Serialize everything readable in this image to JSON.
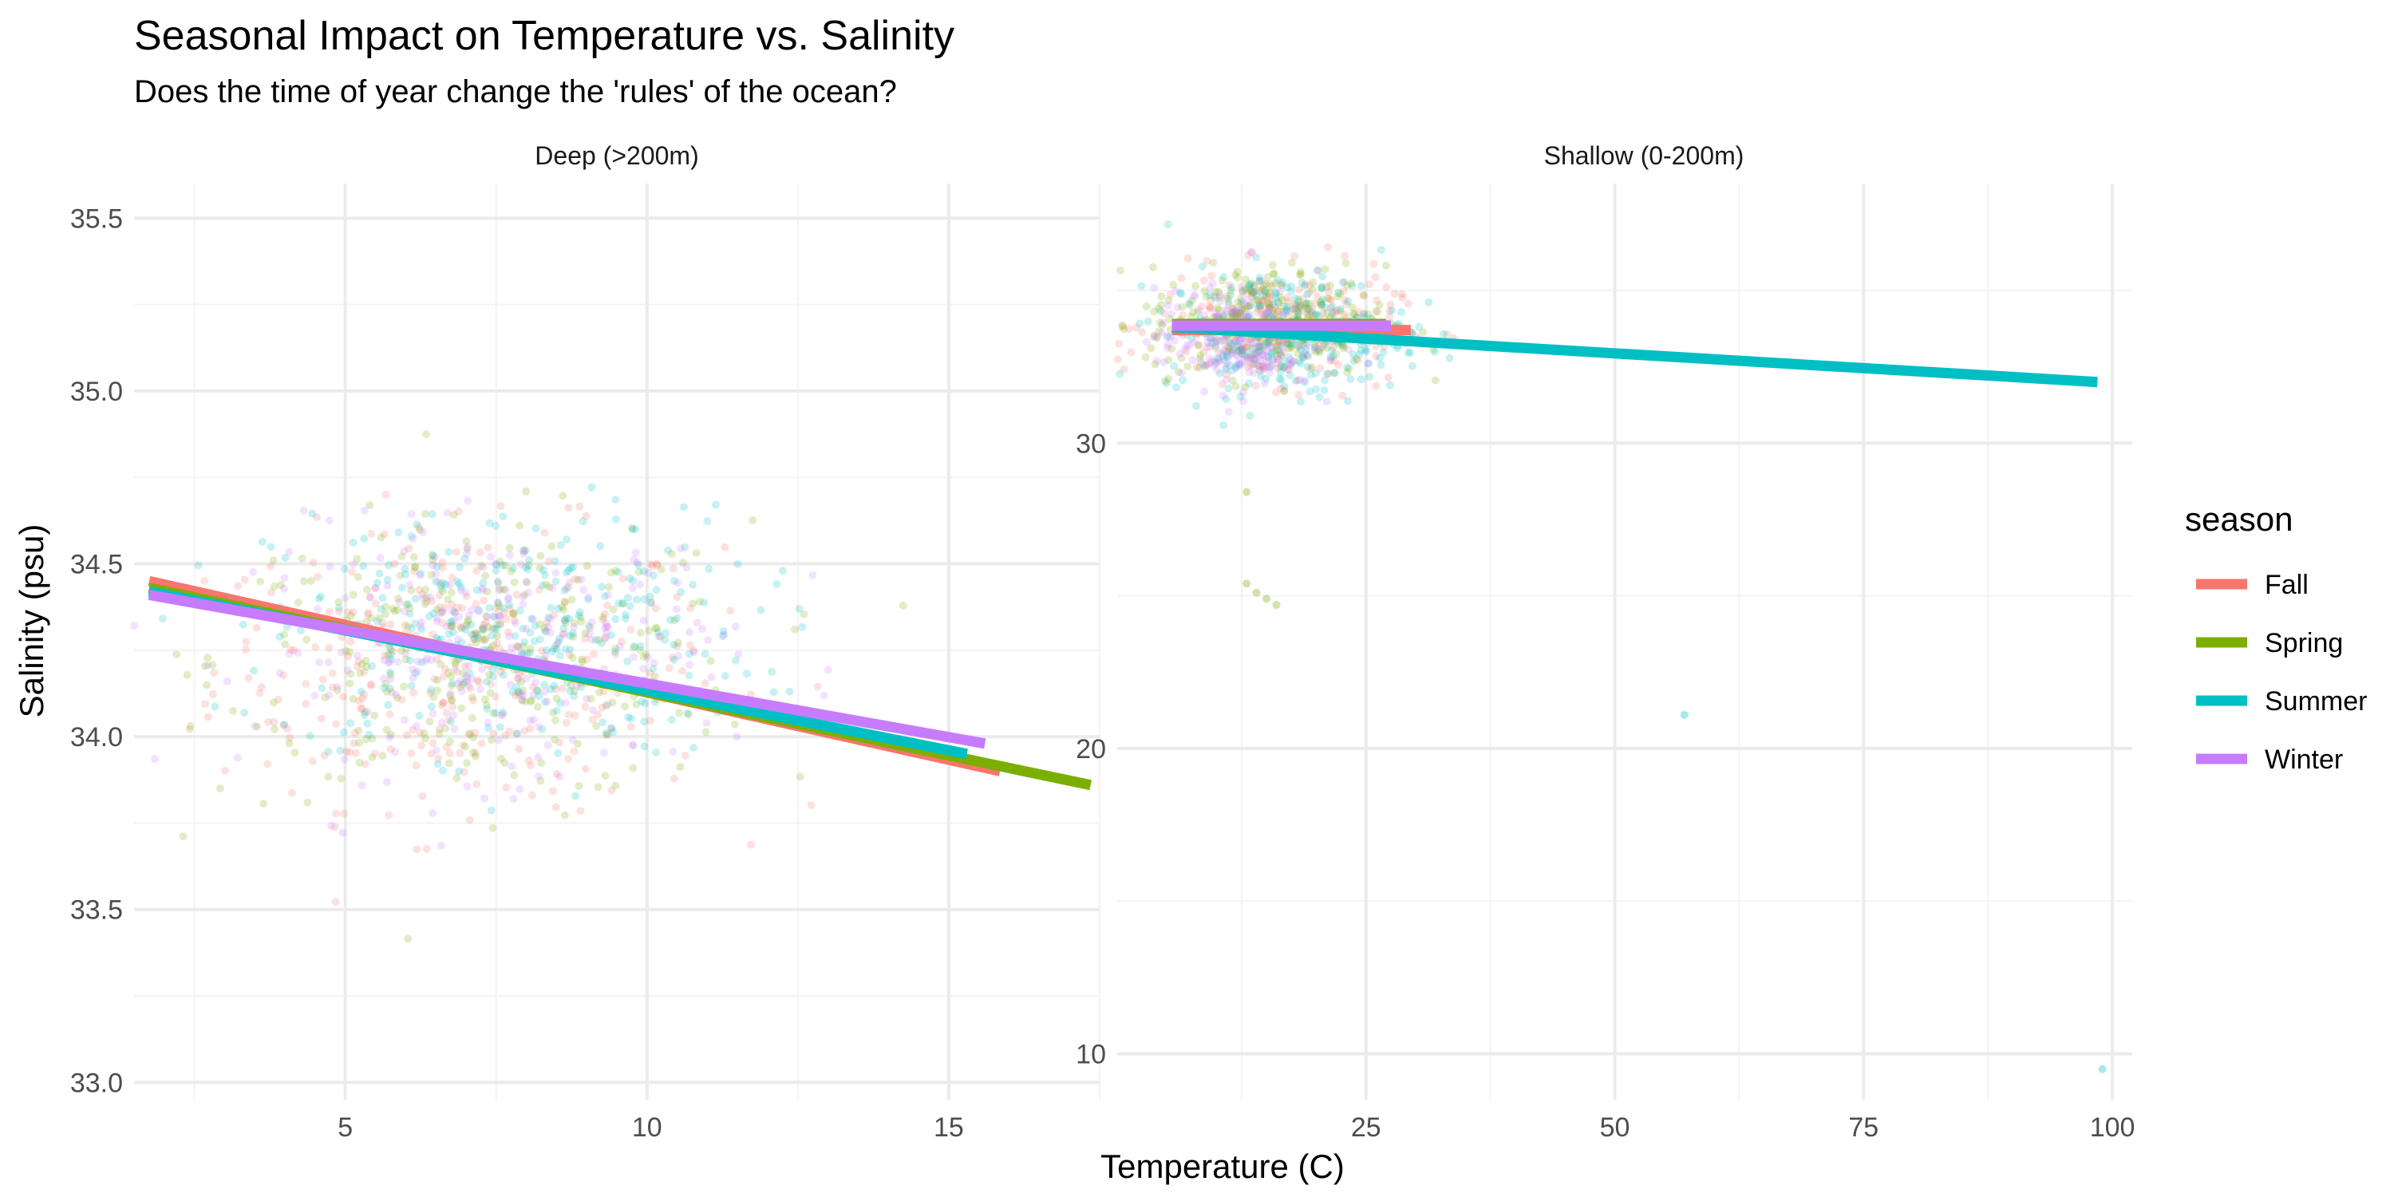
{
  "chart_data": {
    "type": "scatter",
    "title": "Seasonal Impact on Temperature vs. Salinity",
    "subtitle": "Does the time of year change the 'rules' of the ocean?",
    "xlabel": "Temperature (C)",
    "ylabel": "Salinity (psu)",
    "legend": {
      "title": "season",
      "placement": "right",
      "entries": [
        {
          "name": "Fall",
          "color": "#F8766D"
        },
        {
          "name": "Spring",
          "color": "#7CAE00"
        },
        {
          "name": "Summer",
          "color": "#00BFC4"
        },
        {
          "name": "Winter",
          "color": "#C77CFF"
        }
      ]
    },
    "grid": true,
    "panels": [
      {
        "label": "Deep (>200m)",
        "xlim": [
          1.5,
          17.5
        ],
        "ylim": [
          32.95,
          35.6
        ],
        "x_ticks": [
          5,
          10,
          15
        ],
        "y_ticks": [
          33.0,
          33.5,
          34.0,
          34.5,
          35.0,
          35.5
        ],
        "y_tick_labels": [
          "33.0",
          "33.5",
          "34.0",
          "34.5",
          "35.0",
          "35.5"
        ],
        "point_cloud": [
          {
            "season": "Fall",
            "cx": 7.0,
            "cy": 34.2,
            "sx": 2.1,
            "sy": 0.2,
            "n": 320
          },
          {
            "season": "Spring",
            "cx": 7.3,
            "cy": 34.22,
            "sx": 2.2,
            "sy": 0.2,
            "n": 320
          },
          {
            "season": "Summer",
            "cx": 7.8,
            "cy": 34.3,
            "sx": 2.0,
            "sy": 0.18,
            "n": 320
          },
          {
            "season": "Winter",
            "cx": 7.5,
            "cy": 34.25,
            "sx": 2.0,
            "sy": 0.18,
            "n": 260
          }
        ],
        "fits": [
          {
            "season": "Fall",
            "x": [
              1.75,
              15.85
            ],
            "y": [
              34.45,
              33.9
            ]
          },
          {
            "season": "Spring",
            "x": [
              1.75,
              17.35
            ],
            "y": [
              34.43,
              33.86
            ]
          },
          {
            "season": "Summer",
            "x": [
              1.75,
              15.3
            ],
            "y": [
              34.42,
              33.95
            ]
          },
          {
            "season": "Winter",
            "x": [
              1.75,
              15.6
            ],
            "y": [
              34.41,
              33.98
            ]
          }
        ]
      },
      {
        "label": "Shallow (0-200m)",
        "xlim": [
          0,
          102
        ],
        "ylim": [
          8.5,
          38.5
        ],
        "x_ticks": [
          25,
          50,
          75,
          100
        ],
        "y_ticks": [
          10,
          20,
          30
        ],
        "y_tick_labels": [
          "10",
          "20",
          "30"
        ],
        "point_cloud": [
          {
            "season": "Fall",
            "cx": 16,
            "cy": 33.8,
            "sx": 6,
            "sy": 0.9,
            "n": 300
          },
          {
            "season": "Spring",
            "cx": 15,
            "cy": 34.0,
            "sx": 6,
            "sy": 0.9,
            "n": 300
          },
          {
            "season": "Summer",
            "cx": 17,
            "cy": 33.6,
            "sx": 6,
            "sy": 1.0,
            "n": 300
          },
          {
            "season": "Winter",
            "cx": 12,
            "cy": 33.4,
            "sx": 4,
            "sy": 0.8,
            "n": 220
          }
        ],
        "outliers": [
          {
            "season": "Spring",
            "x": 13,
            "y": 25.4
          },
          {
            "season": "Spring",
            "x": 14,
            "y": 25.1
          },
          {
            "season": "Spring",
            "x": 15,
            "y": 24.9
          },
          {
            "season": "Spring",
            "x": 16,
            "y": 24.7
          },
          {
            "season": "Summer",
            "x": 57,
            "y": 21.1
          },
          {
            "season": "Summer",
            "x": 99,
            "y": 9.5
          },
          {
            "season": "Spring",
            "x": 13,
            "y": 28.4
          }
        ],
        "fits": [
          {
            "season": "Fall",
            "x": [
              5.5,
              29.5
            ],
            "y": [
              33.7,
              33.7
            ]
          },
          {
            "season": "Spring",
            "x": [
              5.5,
              27.0
            ],
            "y": [
              33.9,
              33.9
            ]
          },
          {
            "season": "Summer",
            "x": [
              5.5,
              98.5
            ],
            "y": [
              33.8,
              32.0
            ]
          },
          {
            "season": "Winter",
            "x": [
              5.5,
              27.5
            ],
            "y": [
              33.85,
              33.85
            ]
          }
        ]
      }
    ]
  }
}
